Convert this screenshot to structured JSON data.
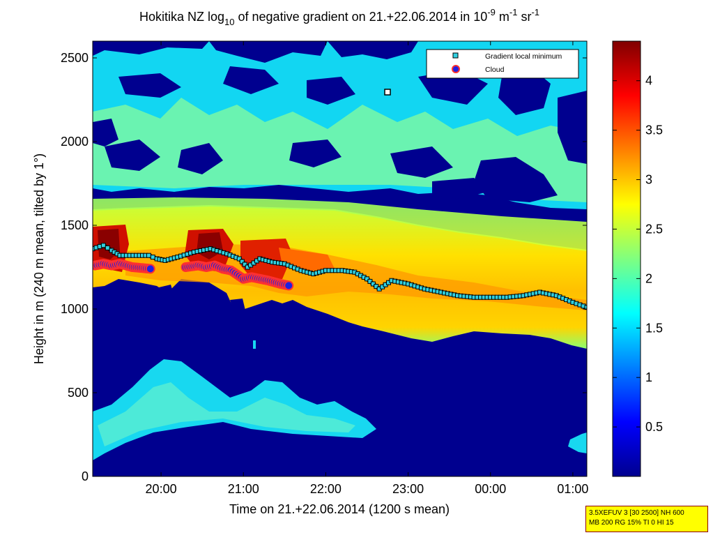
{
  "chart_data": {
    "type": "heatmap",
    "title": {
      "prefix": "Hokitika NZ log",
      "sub": "10",
      "middle": " of negative gradient on 21.+22.06.2014 in 10",
      "sup1": "-9",
      "unit1": " m",
      "sup2": "-1",
      "unit2": " sr",
      "sup3": "-1"
    },
    "xlabel": "Time on 21.+22.06.2014 (1200 s mean)",
    "ylabel": "Height in m (240 m mean, tilted by 1°)",
    "x_ticks": [
      "20:00",
      "21:00",
      "22:00",
      "23:00",
      "00:00",
      "01:00"
    ],
    "x_tick_hours": [
      20,
      21,
      22,
      23,
      24,
      25
    ],
    "x_range_hours": [
      19.17,
      25.17
    ],
    "y_ticks": [
      "0",
      "500",
      "1000",
      "1500",
      "2000",
      "2500"
    ],
    "y_tick_values": [
      0,
      500,
      1000,
      1500,
      2000,
      2500
    ],
    "ylim": [
      0,
      2600
    ],
    "colorbar": {
      "range": [
        0,
        4.4
      ],
      "ticks": [
        "0.5",
        "1",
        "1.5",
        "2",
        "2.5",
        "3",
        "3.5",
        "4"
      ],
      "tick_values": [
        0.5,
        1,
        1.5,
        2,
        2.5,
        3,
        3.5,
        4
      ],
      "colormap": "jet"
    },
    "legend": {
      "position": "top-right",
      "entries": [
        "Gradient local minimum",
        "Cloud"
      ]
    },
    "series": [
      {
        "name": "Gradient local minimum",
        "points": [
          [
            19.17,
            1360
          ],
          [
            19.3,
            1380
          ],
          [
            19.4,
            1350
          ],
          [
            19.5,
            1320
          ],
          [
            19.7,
            1320
          ],
          [
            19.85,
            1320
          ],
          [
            19.95,
            1300
          ],
          [
            20.05,
            1290
          ],
          [
            20.2,
            1310
          ],
          [
            20.4,
            1340
          ],
          [
            20.6,
            1360
          ],
          [
            20.8,
            1330
          ],
          [
            20.95,
            1300
          ],
          [
            21.05,
            1250
          ],
          [
            21.2,
            1300
          ],
          [
            21.35,
            1280
          ],
          [
            21.5,
            1270
          ],
          [
            21.7,
            1230
          ],
          [
            21.85,
            1210
          ],
          [
            22.0,
            1230
          ],
          [
            22.2,
            1230
          ],
          [
            22.35,
            1220
          ],
          [
            22.5,
            1180
          ],
          [
            22.65,
            1120
          ],
          [
            22.8,
            1170
          ],
          [
            23.0,
            1150
          ],
          [
            23.2,
            1120
          ],
          [
            23.4,
            1100
          ],
          [
            23.6,
            1080
          ],
          [
            23.8,
            1070
          ],
          [
            24.0,
            1070
          ],
          [
            24.2,
            1070
          ],
          [
            24.4,
            1080
          ],
          [
            24.6,
            1100
          ],
          [
            24.8,
            1080
          ],
          [
            25.0,
            1040
          ],
          [
            25.17,
            1010
          ]
        ]
      },
      {
        "name": "Cloud",
        "points": [
          [
            19.2,
            1260
          ],
          [
            19.3,
            1270
          ],
          [
            19.4,
            1260
          ],
          [
            19.5,
            1270
          ],
          [
            19.65,
            1250
          ],
          [
            19.87,
            1240
          ],
          [
            20.3,
            1250
          ],
          [
            20.45,
            1260
          ],
          [
            20.55,
            1250
          ],
          [
            20.65,
            1260
          ],
          [
            20.75,
            1240
          ],
          [
            20.85,
            1230
          ],
          [
            21.0,
            1180
          ],
          [
            21.1,
            1190
          ],
          [
            21.2,
            1180
          ],
          [
            21.3,
            1170
          ],
          [
            21.45,
            1150
          ],
          [
            21.55,
            1140
          ]
        ]
      }
    ],
    "annotations": []
  },
  "info_box": {
    "line1": "3.5XEFUV 3 [30 2500] NH 600",
    "line2": "MB 200 RG 15% TI 0 HI 15"
  }
}
